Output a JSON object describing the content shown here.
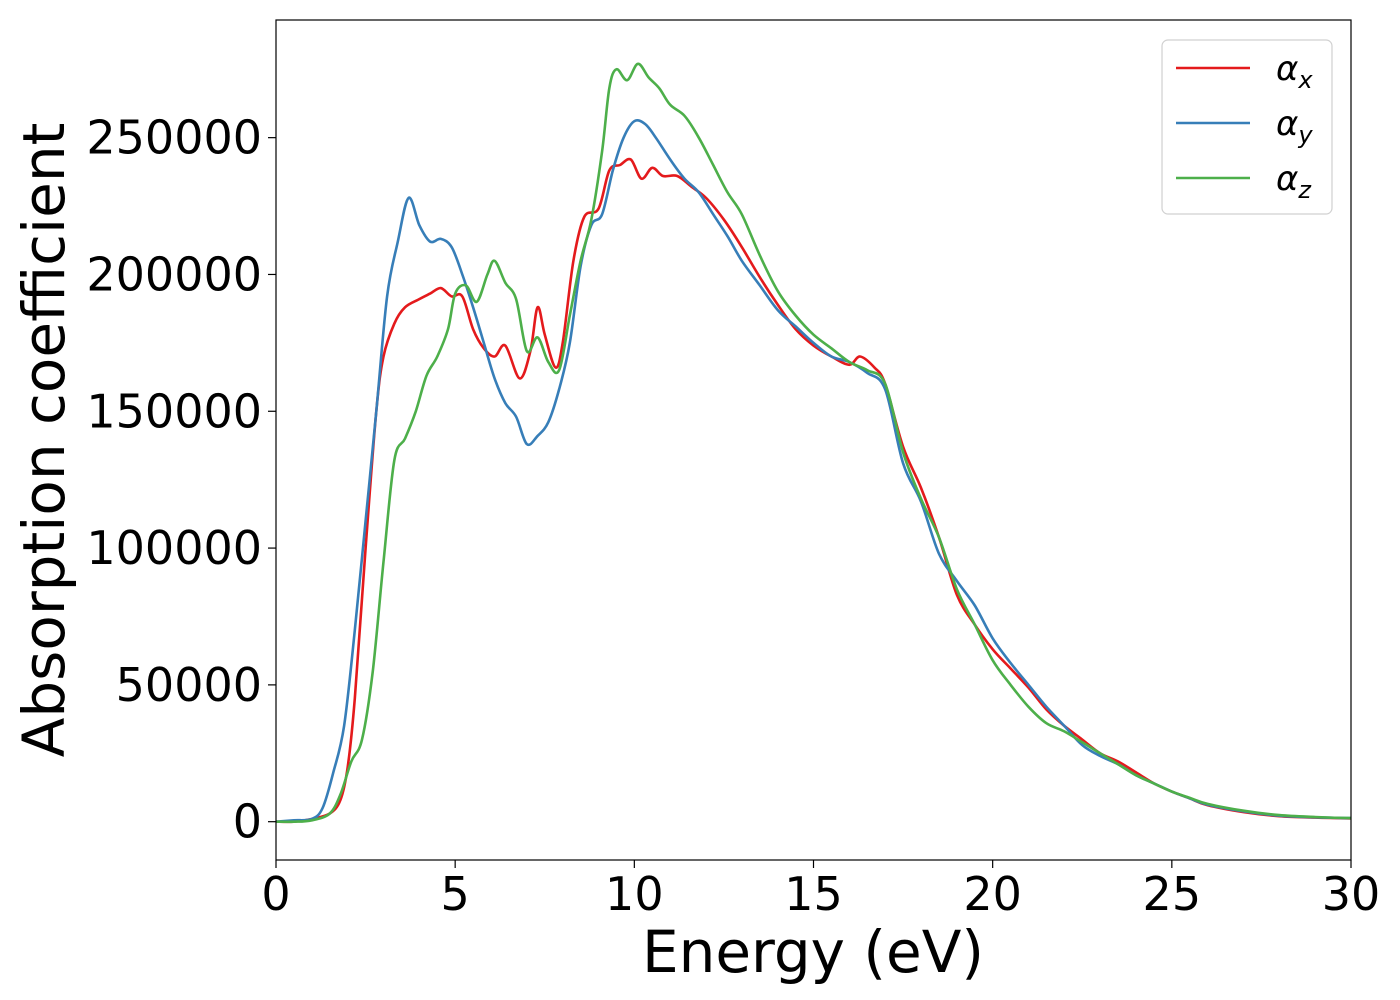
{
  "chart_data": {
    "type": "line",
    "title": "",
    "xlabel": "Energy (eV)",
    "ylabel": "Absorption coefficient",
    "xlim": [
      0,
      30
    ],
    "ylim": [
      -14000,
      293000
    ],
    "grid": false,
    "legend_position": "top-right",
    "x_ticks": [
      0,
      5,
      10,
      15,
      20,
      25,
      30
    ],
    "x_tick_labels": [
      "0",
      "5",
      "10",
      "15",
      "20",
      "25",
      "30"
    ],
    "y_ticks": [
      0,
      50000,
      100000,
      150000,
      200000,
      250000
    ],
    "y_tick_labels": [
      "0",
      "50000",
      "100000",
      "150000",
      "200000",
      "250000"
    ],
    "colors": {
      "x": "#e41a1c",
      "y": "#377eb8",
      "z": "#4daf4a"
    },
    "series": [
      {
        "name": "α_x",
        "symbol": "α",
        "subscript": "x",
        "color": "#e41a1c",
        "x": [
          0,
          0.5,
          1.0,
          1.5,
          1.8,
          2.0,
          2.2,
          2.5,
          2.8,
          3.0,
          3.3,
          3.6,
          4.0,
          4.3,
          4.6,
          4.9,
          5.2,
          5.5,
          5.8,
          6.1,
          6.4,
          6.8,
          7.1,
          7.3,
          7.5,
          7.8,
          8.0,
          8.3,
          8.6,
          9.0,
          9.3,
          9.6,
          9.9,
          10.2,
          10.5,
          10.8,
          11.2,
          11.6,
          12.0,
          12.5,
          13.0,
          13.5,
          14.0,
          14.5,
          15.0,
          15.5,
          16.0,
          16.3,
          16.7,
          17.0,
          17.5,
          18.0,
          18.5,
          19.0,
          19.5,
          20.0,
          20.5,
          21.0,
          21.5,
          22.0,
          22.5,
          23.0,
          23.5,
          24.0,
          24.5,
          25.0,
          25.5,
          26.0,
          27.0,
          28.0,
          29.0,
          30.0
        ],
        "y": [
          0,
          0,
          1000,
          3000,
          8000,
          20000,
          45000,
          100000,
          150000,
          170000,
          182000,
          188000,
          191000,
          193000,
          195000,
          192000,
          192000,
          180000,
          173000,
          170000,
          174000,
          162000,
          172000,
          188000,
          178000,
          166000,
          175000,
          205000,
          221000,
          224000,
          238000,
          240000,
          242000,
          235000,
          239000,
          236000,
          236000,
          232000,
          228000,
          220000,
          210000,
          199000,
          189000,
          180000,
          174000,
          170000,
          167000,
          170000,
          166000,
          160000,
          137000,
          122000,
          104000,
          83000,
          72000,
          63000,
          56000,
          49000,
          41000,
          35000,
          30000,
          25000,
          22000,
          18000,
          14000,
          11000,
          8500,
          6000,
          3500,
          2000,
          1500,
          1200
        ]
      },
      {
        "name": "α_y",
        "symbol": "α",
        "subscript": "y",
        "color": "#377eb8",
        "x": [
          0,
          0.5,
          1.0,
          1.3,
          1.6,
          1.9,
          2.2,
          2.5,
          2.8,
          3.1,
          3.4,
          3.7,
          4.0,
          4.3,
          4.6,
          4.9,
          5.2,
          5.5,
          5.8,
          6.1,
          6.4,
          6.7,
          7.0,
          7.3,
          7.6,
          7.9,
          8.2,
          8.5,
          8.8,
          9.1,
          9.4,
          9.7,
          10.0,
          10.3,
          10.6,
          11.0,
          11.4,
          11.8,
          12.2,
          12.6,
          13.0,
          13.5,
          14.0,
          14.5,
          15.0,
          15.5,
          16.0,
          16.5,
          17.0,
          17.5,
          18.0,
          18.5,
          19.0,
          19.5,
          20.0,
          20.5,
          21.0,
          21.5,
          22.0,
          22.5,
          23.0,
          23.5,
          24.0,
          24.5,
          25.0,
          25.5,
          26.0,
          27.0,
          28.0,
          29.0,
          30.0
        ],
        "y": [
          0,
          500,
          1000,
          5000,
          18000,
          35000,
          70000,
          110000,
          150000,
          192000,
          212000,
          228000,
          218000,
          212000,
          213000,
          210000,
          200000,
          188000,
          175000,
          162000,
          153000,
          148000,
          138000,
          141000,
          146000,
          158000,
          175000,
          203000,
          218000,
          222000,
          238000,
          250000,
          256000,
          255000,
          250000,
          242000,
          235000,
          230000,
          222000,
          214000,
          205000,
          196000,
          187000,
          181000,
          175000,
          170000,
          168000,
          164000,
          158000,
          131000,
          117000,
          98000,
          88000,
          79000,
          67000,
          58000,
          50000,
          42000,
          35000,
          28000,
          24000,
          21000,
          17000,
          14000,
          11000,
          8500,
          6200,
          3800,
          2200,
          1600,
          1300
        ]
      },
      {
        "name": "α_z",
        "symbol": "α",
        "subscript": "z",
        "color": "#4daf4a",
        "x": [
          0,
          0.5,
          1.0,
          1.5,
          1.8,
          2.1,
          2.4,
          2.7,
          3.0,
          3.3,
          3.6,
          3.9,
          4.2,
          4.5,
          4.8,
          5.0,
          5.3,
          5.6,
          5.9,
          6.1,
          6.4,
          6.7,
          7.0,
          7.3,
          7.6,
          7.9,
          8.2,
          8.5,
          8.8,
          9.1,
          9.3,
          9.5,
          9.8,
          10.1,
          10.4,
          10.7,
          11.0,
          11.4,
          11.8,
          12.2,
          12.6,
          13.0,
          13.5,
          14.0,
          14.5,
          15.0,
          15.5,
          16.0,
          16.5,
          17.0,
          17.5,
          18.0,
          18.5,
          19.0,
          19.5,
          20.0,
          20.5,
          21.0,
          21.5,
          22.0,
          22.5,
          23.0,
          23.5,
          24.0,
          24.5,
          25.0,
          25.5,
          26.0,
          27.0,
          28.0,
          29.0,
          30.0
        ],
        "y": [
          0,
          0,
          500,
          3000,
          10000,
          22000,
          30000,
          55000,
          95000,
          132000,
          140000,
          150000,
          163000,
          170000,
          180000,
          193000,
          196000,
          190000,
          200000,
          205000,
          197000,
          191000,
          172000,
          177000,
          168000,
          165000,
          185000,
          205000,
          220000,
          245000,
          268000,
          275000,
          271000,
          277000,
          272000,
          268000,
          262000,
          258000,
          250000,
          240000,
          230000,
          222000,
          207000,
          194000,
          185000,
          178000,
          173000,
          168000,
          165000,
          160000,
          135000,
          118000,
          104000,
          85000,
          72000,
          59000,
          50000,
          42000,
          36000,
          33000,
          29000,
          25000,
          21000,
          17000,
          14000,
          11000,
          8700,
          6500,
          4000,
          2400,
          1700,
          1300
        ]
      }
    ]
  }
}
